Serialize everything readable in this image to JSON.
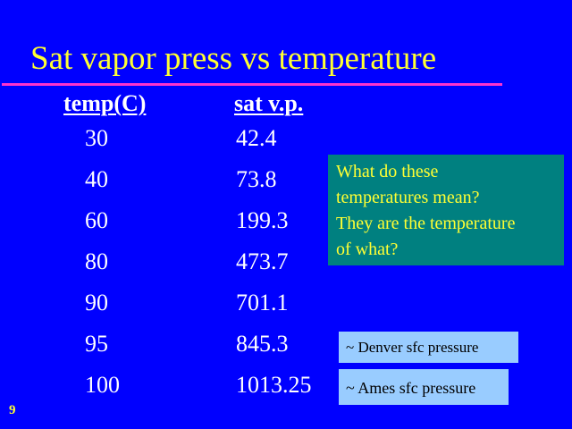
{
  "slide": {
    "title": "Sat vapor press vs temperature",
    "page_number": "9"
  },
  "table": {
    "headers": {
      "temp": "temp(C)",
      "svp": "sat v.p."
    },
    "rows": [
      {
        "temp": "30",
        "svp": "42.4"
      },
      {
        "temp": "40",
        "svp": "73.8"
      },
      {
        "temp": "60",
        "svp": "199.3"
      },
      {
        "temp": "80",
        "svp": "473.7"
      },
      {
        "temp": "90",
        "svp": "701.1"
      },
      {
        "temp": "95",
        "svp": "845.3"
      },
      {
        "temp": "100",
        "svp": "1013.25"
      }
    ]
  },
  "note": {
    "lines": [
      "What do these",
      "temperatures mean?",
      "They are the temperature",
      "of what?"
    ]
  },
  "annotations": {
    "denver": "~ Denver sfc pressure",
    "ames": "~ Ames sfc pressure"
  },
  "colors": {
    "background": "#0000ff",
    "title": "#ffff33",
    "title_rule": "#ff33cc",
    "table_text": "#ffffff",
    "note_background": "#008080",
    "note_text": "#ffff33",
    "tag_background": "#99ccff"
  }
}
